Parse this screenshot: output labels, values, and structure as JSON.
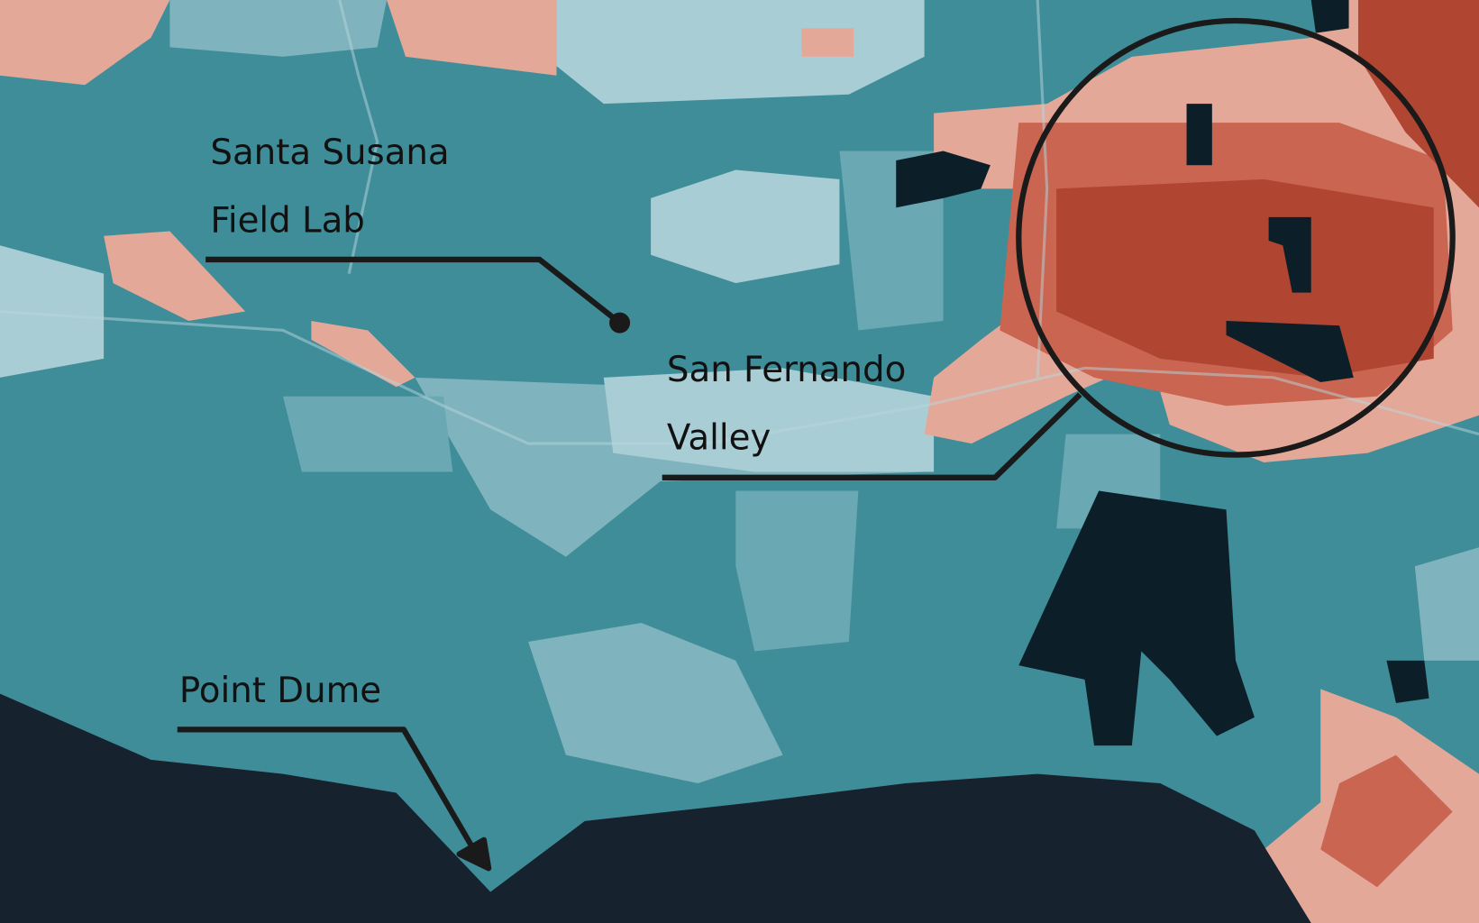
{
  "annotations": [
    {
      "lines": [
        "Santa Susana",
        "Field Lab"
      ]
    },
    {
      "lines": [
        "San Fernando",
        "Valley"
      ]
    },
    {
      "lines": [
        "Point Dume"
      ]
    }
  ]
}
